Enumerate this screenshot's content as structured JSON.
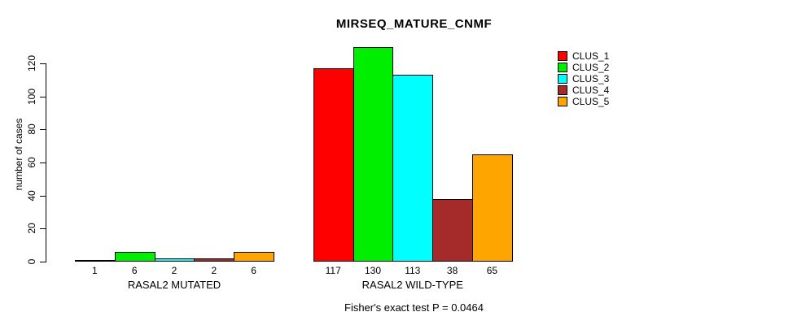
{
  "title": "MIRSEQ_MATURE_CNMF",
  "footer": "Fisher's exact test P = 0.0464",
  "chart_data": {
    "type": "bar",
    "title": "MIRSEQ_MATURE_CNMF",
    "xlabel": "",
    "ylabel": "number of cases",
    "yticks": [
      0,
      20,
      40,
      60,
      80,
      100,
      120
    ],
    "ylim": [
      0,
      130
    ],
    "grid": false,
    "legend_position": "top-right",
    "categories": [
      "RASAL2 MUTATED",
      "RASAL2 WILD-TYPE"
    ],
    "series": [
      {
        "name": "CLUS_1",
        "color": "#FF0000",
        "values": [
          1,
          117
        ]
      },
      {
        "name": "CLUS_2",
        "color": "#00EE00",
        "values": [
          6,
          130
        ]
      },
      {
        "name": "CLUS_3",
        "color": "#00FFFF",
        "values": [
          2,
          113
        ]
      },
      {
        "name": "CLUS_4",
        "color": "#A52A2A",
        "values": [
          2,
          38
        ]
      },
      {
        "name": "CLUS_5",
        "color": "#FFA500",
        "values": [
          6,
          65
        ]
      }
    ],
    "bar_value_labels": {
      "RASAL2 MUTATED": [
        1,
        6,
        2,
        2,
        6
      ],
      "RASAL2 WILD-TYPE": [
        117,
        130,
        113,
        38,
        65
      ]
    },
    "annotation": "Fisher's exact test P = 0.0464"
  }
}
